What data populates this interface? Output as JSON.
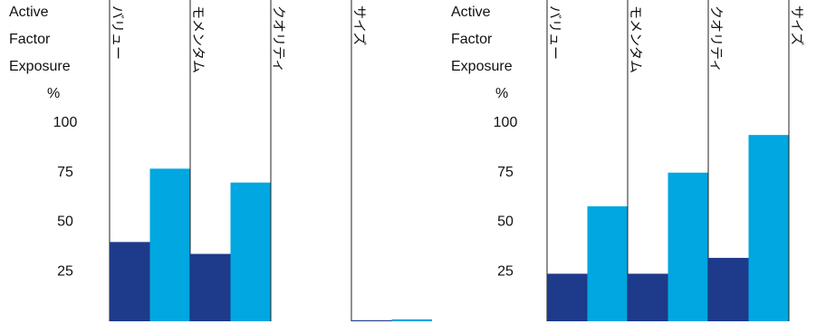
{
  "chart_data": [
    {
      "type": "bar",
      "ylabel_lines": [
        "Active",
        "Factor",
        "Exposure"
      ],
      "unit": "%",
      "categories": [
        "バリュー",
        "モメンタム",
        "クオリティ",
        "サイズ"
      ],
      "series": [
        {
          "color": "#1e3a8a",
          "values": [
            40,
            34,
            0,
            0.5
          ]
        },
        {
          "color": "#00a7e1",
          "values": [
            77,
            70,
            0,
            1
          ]
        }
      ],
      "ylim": [
        0,
        100
      ],
      "yticks": [
        25,
        50,
        75,
        100
      ]
    },
    {
      "type": "bar",
      "ylabel_lines": [
        "Active",
        "Factor",
        "Exposure"
      ],
      "unit": "%",
      "categories": [
        "バリュー",
        "モメンタム",
        "クオリティ",
        "サイズ"
      ],
      "series": [
        {
          "color": "#1e3a8a",
          "values": [
            24,
            24,
            32,
            0
          ]
        },
        {
          "color": "#00a7e1",
          "values": [
            58,
            75,
            94,
            0
          ]
        }
      ],
      "ylim": [
        0,
        100
      ],
      "yticks": [
        25,
        50,
        75,
        100
      ]
    }
  ]
}
